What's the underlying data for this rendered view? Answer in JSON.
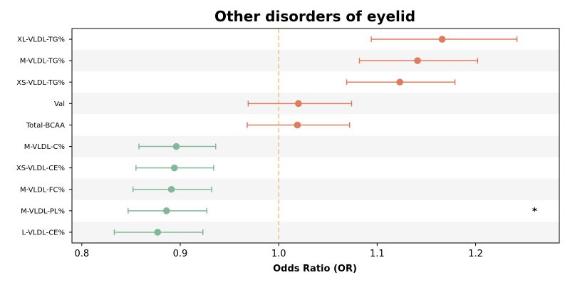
{
  "chart_data": {
    "type": "forest",
    "title": "Other disorders of eyelid",
    "xlabel": "Odds Ratio (OR)",
    "ylabel": "",
    "xlim": [
      0.79,
      1.285
    ],
    "xticks": [
      0.8,
      0.9,
      1.0,
      1.1,
      1.2
    ],
    "xtick_labels": [
      "0.8",
      "0.9",
      "1.0",
      "1.1",
      "1.2"
    ],
    "reference_line": 1.0,
    "grid": false,
    "colors": {
      "positive": "#E07B5F",
      "negative": "#82B89A",
      "reference": "#F2C27E",
      "band": "#F5F5F5"
    },
    "rows": [
      {
        "label": "XL-VLDL-TG%",
        "or": 1.166,
        "lo": 1.094,
        "hi": 1.242
      },
      {
        "label": "M-VLDL-TG%",
        "or": 1.141,
        "lo": 1.082,
        "hi": 1.202
      },
      {
        "label": "XS-VLDL-TG%",
        "or": 1.123,
        "lo": 1.069,
        "hi": 1.179
      },
      {
        "label": "Val",
        "or": 1.02,
        "lo": 0.969,
        "hi": 1.074
      },
      {
        "label": "Total-BCAA",
        "or": 1.019,
        "lo": 0.968,
        "hi": 1.072
      },
      {
        "label": "M-VLDL-C%",
        "or": 0.896,
        "lo": 0.858,
        "hi": 0.936
      },
      {
        "label": "XS-VLDL-CE%",
        "or": 0.894,
        "lo": 0.855,
        "hi": 0.934
      },
      {
        "label": "M-VLDL-FC%",
        "or": 0.891,
        "lo": 0.852,
        "hi": 0.932
      },
      {
        "label": "M-VLDL-PL%",
        "or": 0.886,
        "lo": 0.847,
        "hi": 0.927
      },
      {
        "label": "L-VLDL-CE%",
        "or": 0.877,
        "lo": 0.833,
        "hi": 0.923
      }
    ],
    "annotations": [
      {
        "text": "*",
        "row": 8,
        "x": 1.26
      }
    ]
  }
}
